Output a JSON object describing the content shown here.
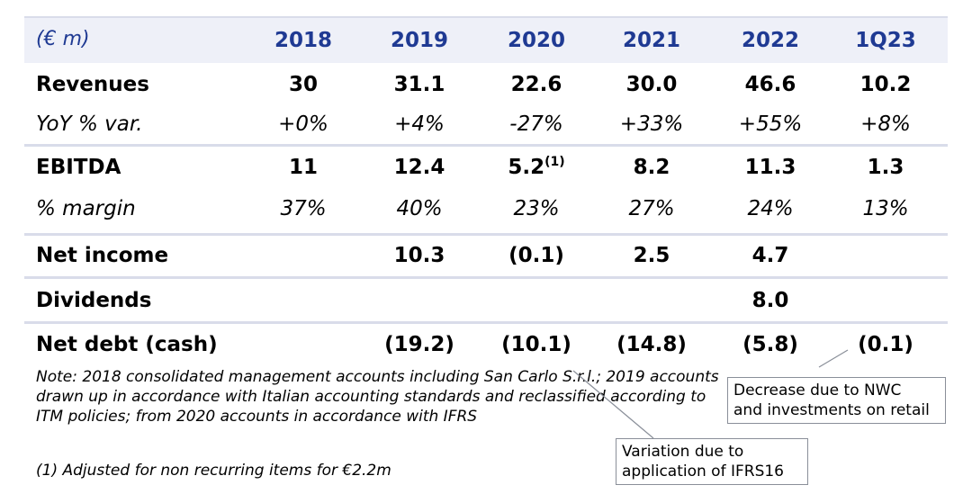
{
  "table": {
    "unit_label": "(€ m)",
    "columns": [
      "2018",
      "2019",
      "2020",
      "2021",
      "2022",
      "1Q23"
    ],
    "rows": {
      "revenues": {
        "label": "Revenues",
        "values": [
          "30",
          "31.1",
          "22.6",
          "30.0",
          "46.6",
          "10.2"
        ]
      },
      "yoy": {
        "label": "YoY % var.",
        "values": [
          "+0%",
          "+4%",
          "-27%",
          "+33%",
          "+55%",
          "+8%"
        ]
      },
      "ebitda": {
        "label": "EBITDA",
        "values": [
          "11",
          "12.4",
          "5.2",
          "8.2",
          "11.3",
          "1.3"
        ],
        "superscript_2020": "(1)"
      },
      "margin": {
        "label": "% margin",
        "values": [
          "37%",
          "40%",
          "23%",
          "27%",
          "24%",
          "13%"
        ]
      },
      "net_income": {
        "label": "Net income",
        "values": [
          "",
          "10.3",
          "(0.1)",
          "2.5",
          "4.7",
          ""
        ]
      },
      "dividends": {
        "label": "Dividends",
        "values": [
          "",
          "",
          "",
          "",
          "8.0",
          ""
        ]
      },
      "net_debt": {
        "label": "Net debt (cash)",
        "values": [
          "",
          "(19.2)",
          "(10.1)",
          "(14.8)",
          "(5.8)",
          "(0.1)"
        ]
      }
    }
  },
  "notes": {
    "main": "Note: 2018 consolidated management accounts including San Carlo S.r.l.; 2019 accounts drawn up in accordance with Italian accounting standards and reclassified according to ITM policies; from 2020 accounts in accordance with IFRS",
    "footnote": "(1) Adjusted for non recurring items for €2.2m"
  },
  "callouts": {
    "nwc_line1": "Decrease due to NWC",
    "nwc_line2": "and investments on retail",
    "ifrs_line1": "Variation due to",
    "ifrs_line2": "application of IFRS16"
  },
  "colors": {
    "header_text": "#1f3a93",
    "header_band": "#eef0f8",
    "rule": "#d9dcea"
  }
}
